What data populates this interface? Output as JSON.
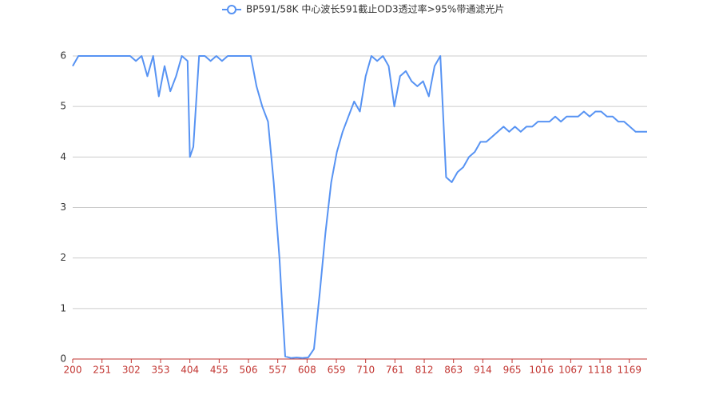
{
  "chart_data": {
    "type": "line",
    "x": [
      200,
      210,
      220,
      230,
      240,
      250,
      260,
      270,
      280,
      290,
      300,
      310,
      320,
      330,
      340,
      350,
      360,
      370,
      380,
      390,
      400,
      404,
      410,
      420,
      430,
      440,
      450,
      460,
      470,
      480,
      490,
      500,
      510,
      520,
      530,
      540,
      550,
      560,
      565,
      570,
      580,
      590,
      600,
      610,
      620,
      630,
      640,
      650,
      660,
      670,
      680,
      690,
      700,
      710,
      720,
      730,
      740,
      750,
      760,
      770,
      780,
      790,
      800,
      810,
      820,
      830,
      840,
      850,
      860,
      870,
      880,
      890,
      900,
      910,
      920,
      930,
      940,
      950,
      960,
      970,
      980,
      990,
      1000,
      1010,
      1020,
      1030,
      1040,
      1050,
      1060,
      1070,
      1080,
      1090,
      1100,
      1110,
      1120,
      1130,
      1140,
      1150,
      1160,
      1170,
      1180,
      1190,
      1200
    ],
    "series": [
      {
        "name": "BP591/58K 中心波长591截止OD3透过率>95%带通滤光片",
        "color": "#5793f3",
        "values": [
          5.8,
          6,
          6,
          6,
          6,
          6,
          6,
          6,
          6,
          6,
          6,
          5.9,
          6,
          5.6,
          6,
          5.2,
          5.8,
          5.3,
          5.6,
          6,
          5.9,
          4.0,
          4.2,
          6,
          6,
          5.9,
          6,
          5.9,
          6,
          6,
          6,
          6,
          6,
          5.4,
          5.0,
          4.7,
          3.5,
          2.0,
          1.0,
          0.05,
          0.02,
          0.03,
          0.02,
          0.03,
          0.2,
          1.3,
          2.5,
          3.5,
          4.1,
          4.5,
          4.8,
          5.1,
          4.9,
          5.6,
          6,
          5.9,
          6,
          5.8,
          5.0,
          5.6,
          5.7,
          5.5,
          5.4,
          5.5,
          5.2,
          5.8,
          6,
          3.6,
          3.5,
          3.7,
          3.8,
          4.0,
          4.1,
          4.3,
          4.3,
          4.4,
          4.5,
          4.6,
          4.5,
          4.6,
          4.5,
          4.6,
          4.6,
          4.7,
          4.7,
          4.7,
          4.8,
          4.7,
          4.8,
          4.8,
          4.8,
          4.9,
          4.8,
          4.9,
          4.9,
          4.8,
          4.8,
          4.7,
          4.7,
          4.6,
          4.5,
          4.5,
          4.5
        ]
      }
    ],
    "xlim": [
      200,
      1200
    ],
    "xticks": [
      200,
      251,
      302,
      353,
      404,
      455,
      506,
      557,
      608,
      659,
      710,
      761,
      812,
      863,
      914,
      965,
      1016,
      1067,
      1118,
      1169
    ],
    "ylim": [
      0,
      6
    ],
    "yticks": [
      0,
      1,
      2,
      3,
      4,
      5,
      6
    ],
    "grid": true
  }
}
